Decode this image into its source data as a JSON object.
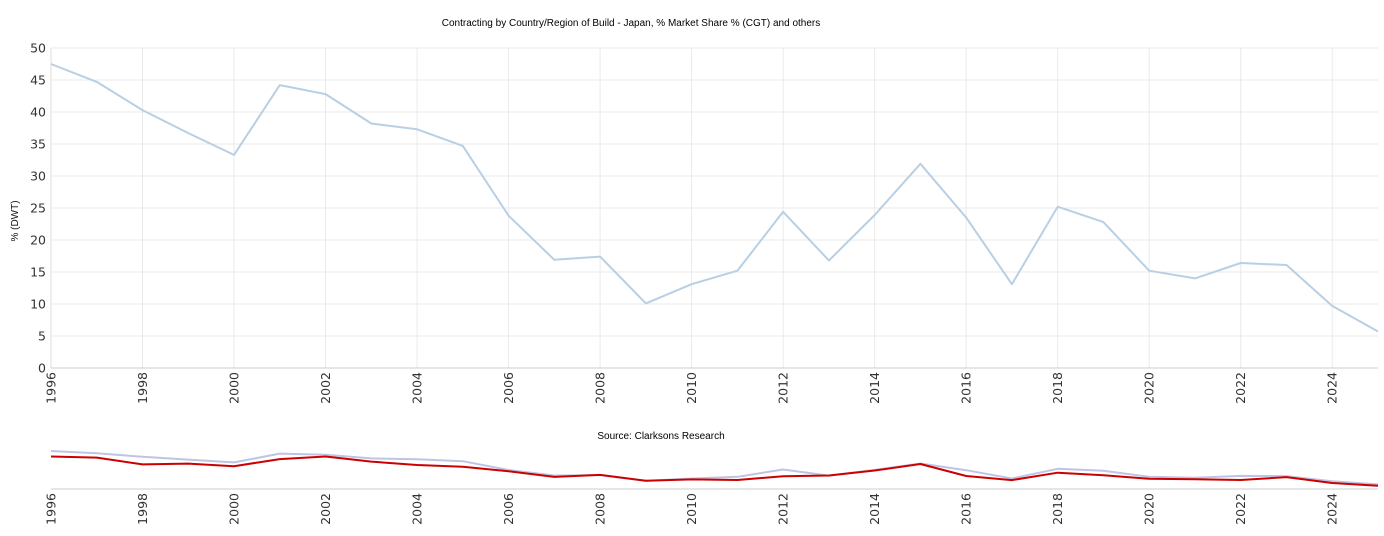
{
  "chart_data": {
    "type": "line",
    "title": "Contracting by Country/Region of Build - Japan, % Market Share % (CGT) and others",
    "ylabel": "% (DWT)",
    "xlabel": "",
    "source": "Source: Clarksons Research",
    "x": [
      1996,
      1997,
      1998,
      1999,
      2000,
      2001,
      2002,
      2003,
      2004,
      2005,
      2006,
      2007,
      2008,
      2009,
      2010,
      2011,
      2012,
      2013,
      2014,
      2015,
      2016,
      2017,
      2018,
      2019,
      2020,
      2021,
      2022,
      2023,
      2024,
      2025
    ],
    "x_ticks": [
      "1996",
      "1998",
      "2000",
      "2002",
      "2004",
      "2006",
      "2008",
      "2010",
      "2012",
      "2014",
      "2016",
      "2018",
      "2020",
      "2022",
      "2024"
    ],
    "y_ticks": [
      "0",
      "5",
      "10",
      "15",
      "20",
      "25",
      "30",
      "35",
      "40",
      "45",
      "50"
    ],
    "ylim": [
      0,
      50
    ],
    "grid": true,
    "series": [
      {
        "color": "#b8cfe4",
        "values": [
          47.5,
          44.7,
          40.3,
          36.7,
          33.3,
          44.2,
          42.8,
          38.2,
          37.3,
          34.7,
          23.8,
          16.9,
          17.4,
          10.1,
          13.1,
          15.2,
          24.4,
          16.8,
          23.9,
          31.9,
          23.5,
          13.1,
          25.2,
          22.8,
          15.2,
          14.0,
          16.4,
          16.1,
          9.7,
          5.7
        ]
      }
    ],
    "navigator": {
      "series": [
        {
          "color": "#c0c4e4",
          "values": [
            47.5,
            44.7,
            40.3,
            36.7,
            33.3,
            44.2,
            42.8,
            38.2,
            37.3,
            34.7,
            23.8,
            16.9,
            17.4,
            10.1,
            13.1,
            15.2,
            24.4,
            16.8,
            23.9,
            31.9,
            23.5,
            13.1,
            25.2,
            22.8,
            15.2,
            14.0,
            16.4,
            16.1,
            9.7,
            5.7
          ]
        },
        {
          "color": "#cc0000",
          "values": [
            40.6,
            39.2,
            30.8,
            31.8,
            28.5,
            37.4,
            40.6,
            34.2,
            30.0,
            27.9,
            22.1,
            15.1,
            17.6,
            10.3,
            12.0,
            11.2,
            16.0,
            16.9,
            23.1,
            31.3,
            16.2,
            11.1,
            20.4,
            17.3,
            12.8,
            12.3,
            11.2,
            14.9,
            7.5,
            4.0
          ]
        }
      ]
    }
  }
}
